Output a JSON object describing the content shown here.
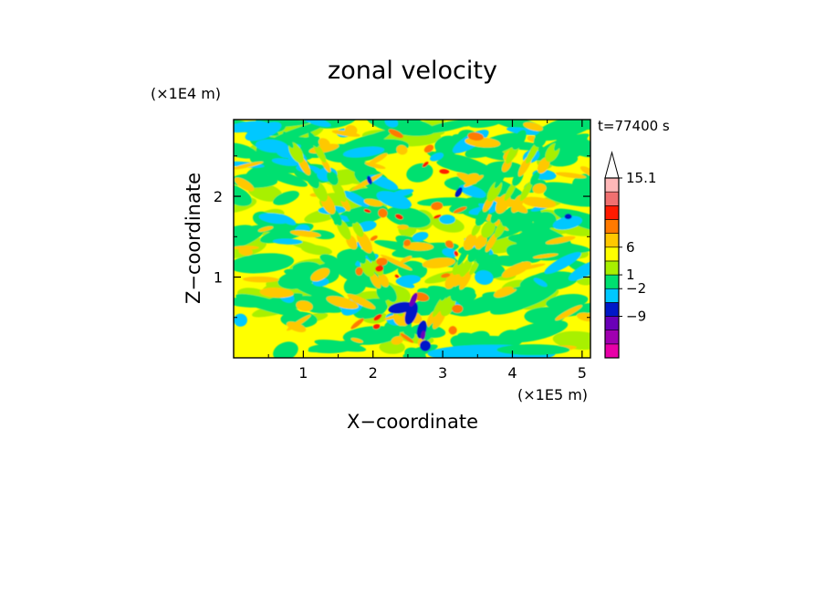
{
  "chart_data": {
    "type": "heatmap",
    "title": "zonal velocity",
    "xlabel": "X−coordinate",
    "ylabel": "Z−coordinate",
    "x_unit": "(×1E5 m)",
    "y_unit": "(×1E4 m)",
    "time_label": "t=77400 s",
    "xlim": [
      0,
      5.12
    ],
    "ylim": [
      0,
      2.95
    ],
    "x_ticks": [
      1,
      2,
      3,
      4,
      5
    ],
    "y_ticks": [
      1,
      2
    ],
    "colorbar": {
      "levels": [
        {
          "color": "#e800a8"
        },
        {
          "color": "#a000b0"
        },
        {
          "color": "#6a00b8"
        },
        {
          "color": "#0018c8"
        },
        {
          "color": "#00c8ff"
        },
        {
          "color": "#00e070"
        },
        {
          "color": "#a8f000"
        },
        {
          "color": "#ffff00"
        },
        {
          "color": "#ffc800"
        },
        {
          "color": "#ff7a00"
        },
        {
          "color": "#ff1a00"
        },
        {
          "color": "#f07070"
        },
        {
          "color": "#ffb8b8"
        }
      ],
      "extend_max_color": "#ffffff",
      "tick_labels": [
        "15.1",
        "6",
        "1",
        "−2",
        "−9"
      ]
    }
  }
}
